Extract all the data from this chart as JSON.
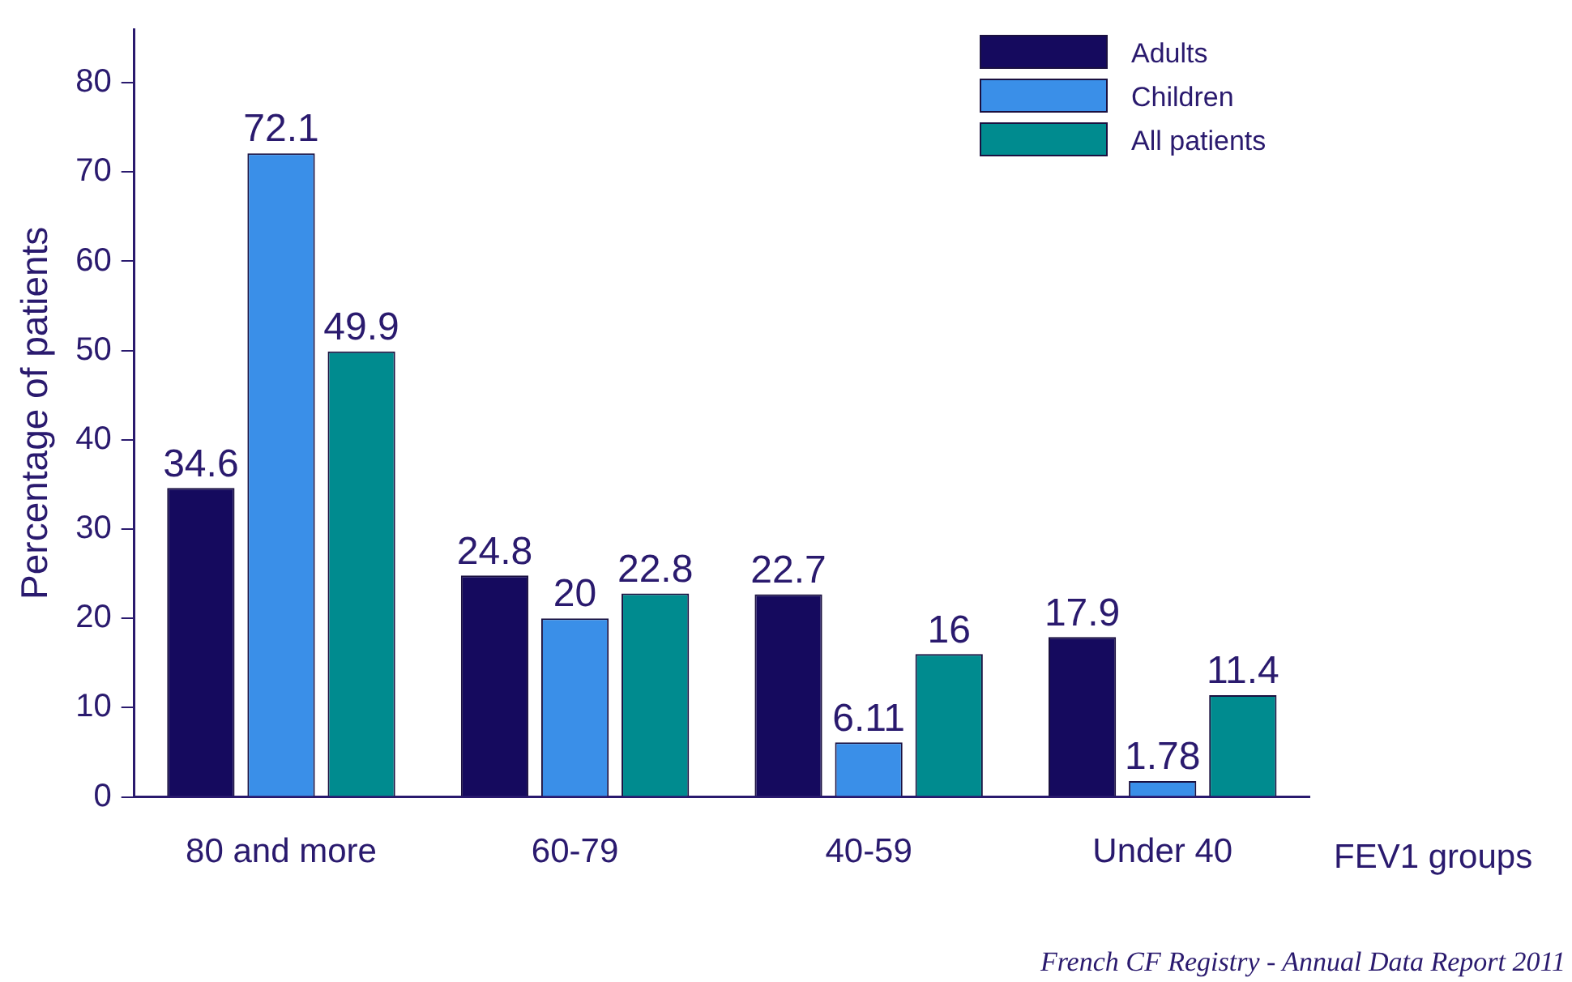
{
  "chart_data": {
    "type": "bar",
    "ylabel": "Percentage of patients",
    "xlabel": "FEV1 groups",
    "categories": [
      "80 and more",
      "60-79",
      "40-59",
      "Under 40"
    ],
    "series": [
      {
        "name": "Adults",
        "color": "#150a5e",
        "values": [
          34.6,
          24.8,
          22.7,
          17.9
        ]
      },
      {
        "name": "Children",
        "color": "#3a8fe8",
        "values": [
          72.1,
          20,
          6.11,
          1.78
        ]
      },
      {
        "name": "All patients",
        "color": "#008b8f",
        "values": [
          49.9,
          22.8,
          16,
          11.4
        ]
      }
    ],
    "ylim": [
      0,
      86
    ],
    "yticks": [
      0,
      10,
      20,
      30,
      40,
      50,
      60,
      70,
      80
    ],
    "grid": false,
    "legend": "top right",
    "data_labels": true,
    "annotations": [
      "French CF Registry - Annual Data Report 2011"
    ]
  }
}
